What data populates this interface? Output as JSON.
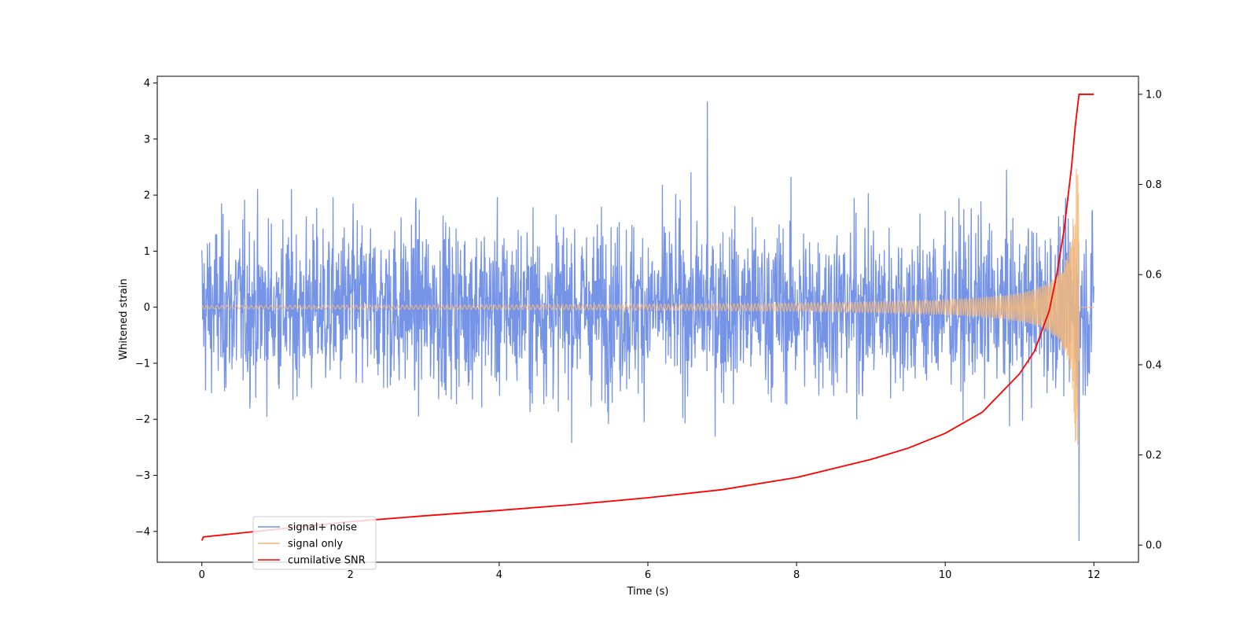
{
  "chart_data": {
    "type": "line",
    "title": "",
    "xlabel": "Time (s)",
    "ylabel": "Whitened strain",
    "y2label": "",
    "xlim": [
      -0.6,
      12.6
    ],
    "ylim": [
      -4.55,
      4.12
    ],
    "y2lim": [
      -0.038,
      1.04
    ],
    "x_ticks": [
      0,
      2,
      4,
      6,
      8,
      10,
      12
    ],
    "x_tick_labels": [
      "0",
      "2",
      "4",
      "6",
      "8",
      "10",
      "12"
    ],
    "y_ticks": [
      -4,
      -3,
      -2,
      -1,
      0,
      1,
      2,
      3,
      4
    ],
    "y_tick_labels": [
      "−4",
      "−3",
      "−2",
      "−1",
      "0",
      "1",
      "2",
      "3",
      "4"
    ],
    "y2_ticks": [
      0.0,
      0.2,
      0.4,
      0.6,
      0.8,
      1.0
    ],
    "y2_tick_labels": [
      "0.0",
      "0.2",
      "0.4",
      "0.6",
      "0.8",
      "1.0"
    ],
    "grid": false,
    "legend_position": "lower-left",
    "series": [
      {
        "name": "signal+ noise",
        "axis": "left",
        "color": "#6f8ee6",
        "x_range": [
          0,
          12
        ],
        "envelope": {
          "typical_amplitude": 1.5,
          "peak_max": 3.67,
          "peak_min": -4.17,
          "peak_max_time": 6.8,
          "peak_min_time": 11.8
        }
      },
      {
        "name": "signal only",
        "axis": "left",
        "color": "#f5b97a",
        "x_range": [
          0,
          12
        ],
        "chirp": {
          "merger_time": 11.8,
          "final_amplitude": 2.6,
          "initial_amplitude": 0.03
        }
      },
      {
        "name": "cumilative SNR",
        "axis": "right",
        "color": "#ff0000",
        "x": [
          0,
          0.02,
          1,
          2,
          3,
          4,
          5,
          6,
          7,
          8,
          9,
          9.5,
          10,
          10.5,
          11,
          11.2,
          11.4,
          11.5,
          11.6,
          11.7,
          11.75,
          11.8,
          11.9,
          12
        ],
        "values": [
          0.01,
          0.018,
          0.035,
          0.052,
          0.065,
          0.077,
          0.09,
          0.105,
          0.123,
          0.15,
          0.19,
          0.215,
          0.248,
          0.295,
          0.38,
          0.43,
          0.52,
          0.6,
          0.7,
          0.84,
          0.93,
          1.0,
          1.0,
          1.0
        ]
      }
    ]
  }
}
